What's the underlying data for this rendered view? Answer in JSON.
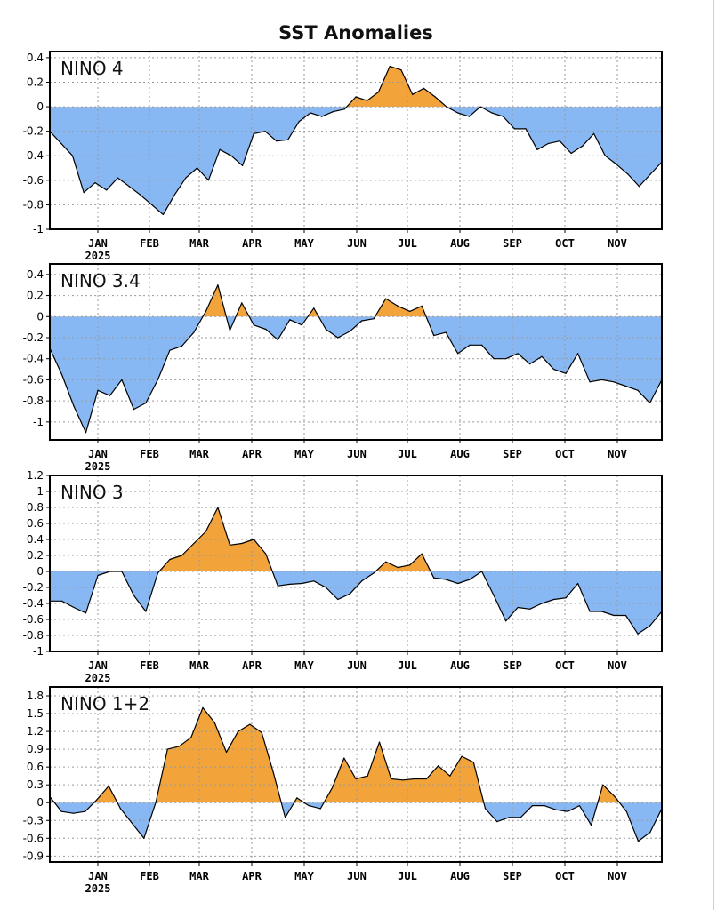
{
  "title": "SST Anomalies",
  "colors": {
    "positive": "#f2a33a",
    "negative": "#88b8f4",
    "grid": "#9a9a9a",
    "axis": "#000000"
  },
  "chart_data": [
    {
      "type": "area",
      "label": "NINO 4",
      "ylim": [
        -1,
        0.45
      ],
      "yticks": [
        0.4,
        0.2,
        0,
        -0.2,
        -0.4,
        -0.6,
        -0.8,
        -1
      ],
      "ytick_labels": [
        "0.4",
        "0.2",
        "0",
        "-0.2",
        "-0.4",
        "-0.6",
        "-0.8",
        "-1"
      ],
      "x_ticks": [
        "JAN",
        "FEB",
        "MAR",
        "APR",
        "MAY",
        "JUN",
        "JUL",
        "AUG",
        "SEP",
        "OCT",
        "NOV"
      ],
      "year_label": "2025",
      "y": [
        -0.2,
        -0.3,
        -0.4,
        -0.7,
        -0.62,
        -0.68,
        -0.58,
        -0.65,
        -0.72,
        -0.8,
        -0.88,
        -0.72,
        -0.58,
        -0.5,
        -0.6,
        -0.35,
        -0.4,
        -0.48,
        -0.22,
        -0.2,
        -0.28,
        -0.27,
        -0.12,
        -0.05,
        -0.08,
        -0.04,
        -0.02,
        0.08,
        0.05,
        0.12,
        0.33,
        0.3,
        0.1,
        0.15,
        0.08,
        0.0,
        -0.05,
        -0.08,
        0.0,
        -0.05,
        -0.08,
        -0.18,
        -0.18,
        -0.35,
        -0.3,
        -0.28,
        -0.38,
        -0.32,
        -0.22,
        -0.4,
        -0.47,
        -0.55,
        -0.65,
        -0.55,
        -0.45
      ]
    },
    {
      "type": "area",
      "label": "NINO 3.4",
      "ylim": [
        -1.17,
        0.5
      ],
      "yticks": [
        0.4,
        0.2,
        0,
        -0.2,
        -0.4,
        -0.6,
        -0.8,
        -1
      ],
      "ytick_labels": [
        "0.4",
        "0.2",
        "0",
        "-0.2",
        "-0.4",
        "-0.6",
        "-0.8",
        "-1"
      ],
      "x_ticks": [
        "JAN",
        "FEB",
        "MAR",
        "APR",
        "MAY",
        "JUN",
        "JUL",
        "AUG",
        "SEP",
        "OCT",
        "NOV"
      ],
      "year_label": "2025",
      "y": [
        -0.3,
        -0.55,
        -0.85,
        -1.1,
        -0.7,
        -0.75,
        -0.6,
        -0.88,
        -0.82,
        -0.6,
        -0.32,
        -0.28,
        -0.15,
        0.05,
        0.3,
        -0.13,
        0.13,
        -0.08,
        -0.12,
        -0.22,
        -0.03,
        -0.08,
        0.08,
        -0.12,
        -0.2,
        -0.14,
        -0.04,
        -0.02,
        0.17,
        0.1,
        0.05,
        0.1,
        -0.18,
        -0.15,
        -0.35,
        -0.27,
        -0.27,
        -0.4,
        -0.4,
        -0.35,
        -0.45,
        -0.38,
        -0.5,
        -0.54,
        -0.35,
        -0.62,
        -0.6,
        -0.62,
        -0.66,
        -0.7,
        -0.82,
        -0.6
      ]
    },
    {
      "type": "area",
      "label": "NINO 3",
      "ylim": [
        -1,
        1.2
      ],
      "yticks": [
        1.2,
        1,
        0.8,
        0.6,
        0.4,
        0.2,
        0,
        -0.2,
        -0.4,
        -0.6,
        -0.8,
        -1
      ],
      "ytick_labels": [
        "1.2",
        "1",
        "0.8",
        "0.6",
        "0.4",
        "0.2",
        "0",
        "-0.2",
        "-0.4",
        "-0.6",
        "-0.8",
        "-1"
      ],
      "x_ticks": [
        "JAN",
        "FEB",
        "MAR",
        "APR",
        "MAY",
        "JUN",
        "JUL",
        "AUG",
        "SEP",
        "OCT",
        "NOV"
      ],
      "year_label": "2025",
      "y": [
        -0.37,
        -0.37,
        -0.45,
        -0.52,
        -0.05,
        0.0,
        0.0,
        -0.3,
        -0.5,
        -0.02,
        0.15,
        0.2,
        0.35,
        0.5,
        0.8,
        0.33,
        0.35,
        0.4,
        0.22,
        -0.18,
        -0.16,
        -0.15,
        -0.12,
        -0.2,
        -0.35,
        -0.28,
        -0.12,
        -0.02,
        0.12,
        0.05,
        0.08,
        0.22,
        -0.08,
        -0.1,
        -0.15,
        -0.1,
        0.0,
        -0.3,
        -0.62,
        -0.45,
        -0.47,
        -0.4,
        -0.35,
        -0.33,
        -0.15,
        -0.5,
        -0.5,
        -0.55,
        -0.55,
        -0.78,
        -0.68,
        -0.5
      ]
    },
    {
      "type": "area",
      "label": "NINO 1+2",
      "ylim": [
        -1.0,
        1.95
      ],
      "yticks": [
        1.8,
        1.5,
        1.2,
        0.9,
        0.6,
        0.3,
        0,
        -0.3,
        -0.6,
        -0.9
      ],
      "ytick_labels": [
        "1.8",
        "1.5",
        "1.2",
        "0.9",
        "0.6",
        "0.3",
        "0",
        "-0.3",
        "-0.6",
        "-0.9"
      ],
      "x_ticks": [
        "JAN",
        "FEB",
        "MAR",
        "APR",
        "MAY",
        "JUN",
        "JUL",
        "AUG",
        "SEP",
        "OCT",
        "NOV"
      ],
      "year_label": "2025",
      "y": [
        0.1,
        -0.15,
        -0.18,
        -0.15,
        0.05,
        0.28,
        -0.1,
        -0.35,
        -0.6,
        0.0,
        0.9,
        0.95,
        1.1,
        1.6,
        1.35,
        0.85,
        1.2,
        1.32,
        1.18,
        0.5,
        -0.25,
        0.08,
        -0.05,
        -0.1,
        0.25,
        0.75,
        0.4,
        0.45,
        1.02,
        0.4,
        0.38,
        0.4,
        0.4,
        0.62,
        0.45,
        0.78,
        0.68,
        -0.1,
        -0.32,
        -0.25,
        -0.25,
        -0.05,
        -0.05,
        -0.12,
        -0.15,
        -0.05,
        -0.38,
        0.3,
        0.1,
        -0.15,
        -0.65,
        -0.5,
        -0.1
      ]
    }
  ]
}
